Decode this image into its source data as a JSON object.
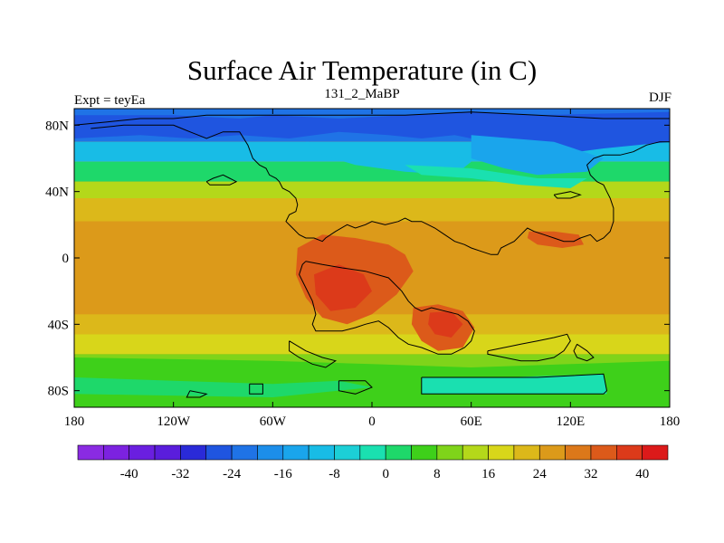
{
  "title": "Surface Air Temperature (in C)",
  "subtitle": "131_2_MaBP",
  "left_label": "Expt = teyEa",
  "right_label": "DJF",
  "map": {
    "lat_ticks": [
      {
        "lat": 80,
        "label": "80N"
      },
      {
        "lat": 40,
        "label": "40N"
      },
      {
        "lat": 0,
        "label": "0"
      },
      {
        "lat": -40,
        "label": "40S"
      },
      {
        "lat": -80,
        "label": "80S"
      }
    ],
    "lon_ticks": [
      {
        "lon": -180,
        "label": "180"
      },
      {
        "lon": -120,
        "label": "120W"
      },
      {
        "lon": -60,
        "label": "60W"
      },
      {
        "lon": 0,
        "label": "0"
      },
      {
        "lon": 60,
        "label": "60E"
      },
      {
        "lon": 120,
        "label": "120E"
      },
      {
        "lon": 180,
        "label": "180"
      }
    ],
    "lat_range": [
      -90,
      90
    ],
    "lon_range": [
      -180,
      180
    ]
  },
  "colorbar": {
    "colors": [
      "#8a2be2",
      "#7c22e0",
      "#6a1fe0",
      "#5a1ddc",
      "#2a2ad8",
      "#1f55e0",
      "#1f73e6",
      "#1c8eea",
      "#1aa5ec",
      "#18bce6",
      "#1ccfd6",
      "#1ae0b0",
      "#1ed86a",
      "#3ed01a",
      "#7fd41a",
      "#b4d81a",
      "#d8d61a",
      "#dcb81a",
      "#dc9a1a",
      "#dc781a",
      "#dc5a1a",
      "#dc3a1a",
      "#dc1a1a"
    ],
    "labels": [
      {
        "index": 2,
        "text": "-40"
      },
      {
        "index": 4,
        "text": "-32"
      },
      {
        "index": 6,
        "text": "-24"
      },
      {
        "index": 8,
        "text": "-16"
      },
      {
        "index": 10,
        "text": "-8"
      },
      {
        "index": 12,
        "text": "0"
      },
      {
        "index": 14,
        "text": "8"
      },
      {
        "index": 16,
        "text": "16"
      },
      {
        "index": 18,
        "text": "24"
      },
      {
        "index": 20,
        "text": "32"
      },
      {
        "index": 22,
        "text": "40"
      }
    ]
  },
  "bands": [
    {
      "lat_top": 90,
      "lat_bottom": 70,
      "color": "#1f73e6"
    },
    {
      "lat_top": 70,
      "lat_bottom": 58,
      "color": "#18bce6"
    },
    {
      "lat_top": 58,
      "lat_bottom": 46,
      "color": "#1ed86a"
    },
    {
      "lat_top": 46,
      "lat_bottom": 36,
      "color": "#b4d81a"
    },
    {
      "lat_top": 36,
      "lat_bottom": 22,
      "color": "#dcb81a"
    },
    {
      "lat_top": 22,
      "lat_bottom": -34,
      "color": "#dc9a1a"
    },
    {
      "lat_top": -34,
      "lat_bottom": -46,
      "color": "#dcb81a"
    },
    {
      "lat_top": -46,
      "lat_bottom": -58,
      "color": "#d8d61a"
    },
    {
      "lat_top": -58,
      "lat_bottom": -72,
      "color": "#7fd41a"
    },
    {
      "lat_top": -72,
      "lat_bottom": -90,
      "color": "#3ed01a"
    }
  ],
  "blobs": [
    {
      "color": "#1f55e0",
      "points": [
        [
          -180,
          86
        ],
        [
          -120,
          86
        ],
        [
          -80,
          84
        ],
        [
          -60,
          86
        ],
        [
          -20,
          84
        ],
        [
          20,
          86
        ],
        [
          60,
          88
        ],
        [
          100,
          86
        ],
        [
          180,
          88
        ],
        [
          180,
          70
        ],
        [
          140,
          66
        ],
        [
          110,
          62
        ],
        [
          90,
          64
        ],
        [
          70,
          70
        ],
        [
          50,
          74
        ],
        [
          30,
          72
        ],
        [
          10,
          74
        ],
        [
          -20,
          76
        ],
        [
          -50,
          72
        ],
        [
          -80,
          74
        ],
        [
          -110,
          72
        ],
        [
          -140,
          74
        ],
        [
          -180,
          72
        ]
      ]
    },
    {
      "color": "#1aa5ec",
      "points": [
        [
          60,
          74
        ],
        [
          110,
          70
        ],
        [
          140,
          60
        ],
        [
          130,
          52
        ],
        [
          100,
          50
        ],
        [
          80,
          54
        ],
        [
          60,
          60
        ]
      ]
    },
    {
      "color": "#18bce6",
      "points": [
        [
          -40,
          70
        ],
        [
          40,
          66
        ],
        [
          60,
          58
        ],
        [
          50,
          50
        ],
        [
          20,
          52
        ],
        [
          -10,
          56
        ],
        [
          -30,
          62
        ]
      ]
    },
    {
      "color": "#1ae0b0",
      "points": [
        [
          20,
          56
        ],
        [
          60,
          54
        ],
        [
          100,
          48
        ],
        [
          130,
          48
        ],
        [
          120,
          42
        ],
        [
          90,
          44
        ],
        [
          60,
          48
        ],
        [
          30,
          50
        ]
      ]
    },
    {
      "color": "#dc5a1a",
      "points": [
        [
          -45,
          6
        ],
        [
          -30,
          14
        ],
        [
          -10,
          12
        ],
        [
          10,
          8
        ],
        [
          20,
          2
        ],
        [
          25,
          -8
        ],
        [
          15,
          -22
        ],
        [
          0,
          -34
        ],
        [
          -15,
          -40
        ],
        [
          -30,
          -36
        ],
        [
          -40,
          -24
        ],
        [
          -46,
          -10
        ]
      ]
    },
    {
      "color": "#dc3a1a",
      "points": [
        [
          -35,
          -10
        ],
        [
          -20,
          -4
        ],
        [
          -5,
          -10
        ],
        [
          0,
          -20
        ],
        [
          -10,
          -30
        ],
        [
          -25,
          -32
        ],
        [
          -34,
          -22
        ]
      ]
    },
    {
      "color": "#dc5a1a",
      "points": [
        [
          25,
          -30
        ],
        [
          40,
          -28
        ],
        [
          55,
          -32
        ],
        [
          62,
          -42
        ],
        [
          55,
          -54
        ],
        [
          40,
          -56
        ],
        [
          30,
          -50
        ],
        [
          24,
          -40
        ]
      ]
    },
    {
      "color": "#dc3a1a",
      "points": [
        [
          35,
          -33
        ],
        [
          48,
          -32
        ],
        [
          55,
          -40
        ],
        [
          48,
          -48
        ],
        [
          38,
          -46
        ],
        [
          34,
          -40
        ]
      ]
    },
    {
      "color": "#dc5a1a",
      "points": [
        [
          95,
          16
        ],
        [
          110,
          16
        ],
        [
          125,
          14
        ],
        [
          128,
          8
        ],
        [
          115,
          6
        ],
        [
          100,
          8
        ],
        [
          94,
          12
        ]
      ]
    },
    {
      "color": "#3ed01a",
      "points": [
        [
          -180,
          -60
        ],
        [
          -60,
          -62
        ],
        [
          0,
          -64
        ],
        [
          60,
          -66
        ],
        [
          120,
          -64
        ],
        [
          180,
          -62
        ],
        [
          180,
          -76
        ],
        [
          -180,
          -76
        ]
      ]
    },
    {
      "color": "#1ae0b0",
      "points": [
        [
          30,
          -72
        ],
        [
          80,
          -72
        ],
        [
          140,
          -70
        ],
        [
          142,
          -82
        ],
        [
          30,
          -82
        ]
      ]
    },
    {
      "color": "#1ed86a",
      "points": [
        [
          -180,
          -72
        ],
        [
          -120,
          -74
        ],
        [
          -60,
          -76
        ],
        [
          -20,
          -74
        ],
        [
          0,
          -78
        ],
        [
          -60,
          -84
        ],
        [
          -180,
          -82
        ]
      ]
    }
  ],
  "coastlines": [
    [
      [
        -170,
        78
      ],
      [
        -150,
        80
      ],
      [
        -120,
        80
      ],
      [
        -115,
        78
      ],
      [
        -110,
        76
      ],
      [
        -105,
        74
      ],
      [
        -100,
        72
      ],
      [
        -95,
        74
      ],
      [
        -90,
        76
      ],
      [
        -80,
        76
      ],
      [
        -75,
        68
      ],
      [
        -72,
        60
      ],
      [
        -68,
        56
      ],
      [
        -64,
        54
      ],
      [
        -62,
        50
      ],
      [
        -58,
        48
      ],
      [
        -56,
        46
      ],
      [
        -54,
        42
      ],
      [
        -50,
        40
      ],
      [
        -46,
        36
      ],
      [
        -45,
        32
      ],
      [
        -46,
        28
      ],
      [
        -50,
        26
      ],
      [
        -52,
        22
      ],
      [
        -48,
        18
      ],
      [
        -44,
        14
      ],
      [
        -40,
        12
      ],
      [
        -35,
        12
      ],
      [
        -30,
        10
      ],
      [
        -28,
        12
      ],
      [
        -22,
        16
      ],
      [
        -15,
        20
      ],
      [
        -10,
        18
      ],
      [
        -4,
        20
      ],
      [
        0,
        22
      ],
      [
        8,
        20
      ],
      [
        16,
        22
      ],
      [
        20,
        24
      ],
      [
        24,
        22
      ],
      [
        30,
        22
      ],
      [
        34,
        20
      ],
      [
        38,
        18
      ],
      [
        44,
        14
      ],
      [
        50,
        10
      ],
      [
        56,
        8
      ],
      [
        60,
        6
      ],
      [
        66,
        4
      ],
      [
        72,
        2
      ],
      [
        76,
        2
      ],
      [
        78,
        6
      ],
      [
        82,
        8
      ],
      [
        86,
        10
      ],
      [
        90,
        14
      ],
      [
        94,
        18
      ],
      [
        98,
        16
      ],
      [
        104,
        14
      ],
      [
        110,
        12
      ],
      [
        116,
        10
      ],
      [
        122,
        10
      ],
      [
        126,
        12
      ],
      [
        132,
        14
      ],
      [
        136,
        10
      ],
      [
        140,
        12
      ],
      [
        144,
        16
      ],
      [
        146,
        22
      ],
      [
        146,
        30
      ],
      [
        144,
        36
      ],
      [
        142,
        40
      ],
      [
        140,
        44
      ],
      [
        136,
        46
      ],
      [
        132,
        50
      ],
      [
        130,
        56
      ],
      [
        134,
        60
      ],
      [
        140,
        62
      ],
      [
        150,
        62
      ],
      [
        158,
        64
      ],
      [
        166,
        68
      ],
      [
        174,
        70
      ],
      [
        180,
        70
      ]
    ],
    [
      [
        -100,
        46
      ],
      [
        -96,
        48
      ],
      [
        -90,
        50
      ],
      [
        -86,
        48
      ],
      [
        -82,
        46
      ],
      [
        -86,
        44
      ],
      [
        -92,
        44
      ],
      [
        -98,
        44
      ],
      [
        -100,
        46
      ]
    ],
    [
      [
        -40,
        -2
      ],
      [
        -30,
        -4
      ],
      [
        -18,
        -6
      ],
      [
        -4,
        -8
      ],
      [
        10,
        -12
      ],
      [
        18,
        -20
      ],
      [
        22,
        -26
      ],
      [
        26,
        -30
      ],
      [
        30,
        -32
      ],
      [
        36,
        -30
      ],
      [
        44,
        -32
      ],
      [
        52,
        -34
      ],
      [
        58,
        -38
      ],
      [
        62,
        -44
      ],
      [
        60,
        -50
      ],
      [
        56,
        -54
      ],
      [
        48,
        -58
      ],
      [
        40,
        -58
      ],
      [
        30,
        -54
      ],
      [
        22,
        -52
      ],
      [
        16,
        -48
      ],
      [
        10,
        -42
      ],
      [
        4,
        -38
      ],
      [
        -4,
        -40
      ],
      [
        -10,
        -42
      ],
      [
        -18,
        -44
      ],
      [
        -26,
        -44
      ],
      [
        -34,
        -44
      ],
      [
        -36,
        -40
      ],
      [
        -34,
        -34
      ],
      [
        -36,
        -26
      ],
      [
        -40,
        -18
      ],
      [
        -44,
        -10
      ],
      [
        -42,
        -4
      ],
      [
        -40,
        -2
      ]
    ],
    [
      [
        -50,
        -50
      ],
      [
        -40,
        -56
      ],
      [
        -30,
        -60
      ],
      [
        -22,
        -62
      ],
      [
        -28,
        -66
      ],
      [
        -36,
        -64
      ],
      [
        -44,
        -60
      ],
      [
        -50,
        -56
      ],
      [
        -50,
        -50
      ]
    ],
    [
      [
        70,
        -56
      ],
      [
        90,
        -52
      ],
      [
        100,
        -50
      ],
      [
        110,
        -48
      ],
      [
        118,
        -46
      ],
      [
        120,
        -50
      ],
      [
        116,
        -56
      ],
      [
        110,
        -60
      ],
      [
        100,
        -62
      ],
      [
        90,
        -62
      ],
      [
        80,
        -60
      ],
      [
        70,
        -58
      ],
      [
        70,
        -56
      ]
    ],
    [
      [
        124,
        -52
      ],
      [
        130,
        -56
      ],
      [
        134,
        -60
      ],
      [
        130,
        -62
      ],
      [
        124,
        -60
      ],
      [
        122,
        -56
      ],
      [
        124,
        -52
      ]
    ],
    [
      [
        30,
        -72
      ],
      [
        60,
        -72
      ],
      [
        100,
        -72
      ],
      [
        140,
        -70
      ],
      [
        142,
        -80
      ],
      [
        140,
        -82
      ],
      [
        100,
        -82
      ],
      [
        60,
        -82
      ],
      [
        30,
        -82
      ],
      [
        30,
        -72
      ]
    ],
    [
      [
        -110,
        -80
      ],
      [
        -100,
        -82
      ],
      [
        -104,
        -84
      ],
      [
        -112,
        -84
      ],
      [
        -110,
        -80
      ]
    ],
    [
      [
        -74,
        -76
      ],
      [
        -66,
        -76
      ],
      [
        -66,
        -82
      ],
      [
        -74,
        -82
      ],
      [
        -74,
        -76
      ]
    ],
    [
      [
        -20,
        -74
      ],
      [
        -4,
        -74
      ],
      [
        0,
        -78
      ],
      [
        -10,
        -82
      ],
      [
        -20,
        -80
      ],
      [
        -20,
        -74
      ]
    ],
    [
      [
        110,
        38
      ],
      [
        120,
        40
      ],
      [
        126,
        38
      ],
      [
        120,
        36
      ],
      [
        112,
        36
      ],
      [
        110,
        38
      ]
    ],
    [
      [
        -180,
        80
      ],
      [
        -160,
        82
      ],
      [
        -140,
        84
      ],
      [
        -120,
        84
      ],
      [
        -100,
        86
      ],
      [
        -60,
        86
      ],
      [
        -20,
        86
      ],
      [
        20,
        86
      ],
      [
        60,
        88
      ],
      [
        100,
        86
      ],
      [
        140,
        84
      ],
      [
        180,
        84
      ]
    ]
  ]
}
